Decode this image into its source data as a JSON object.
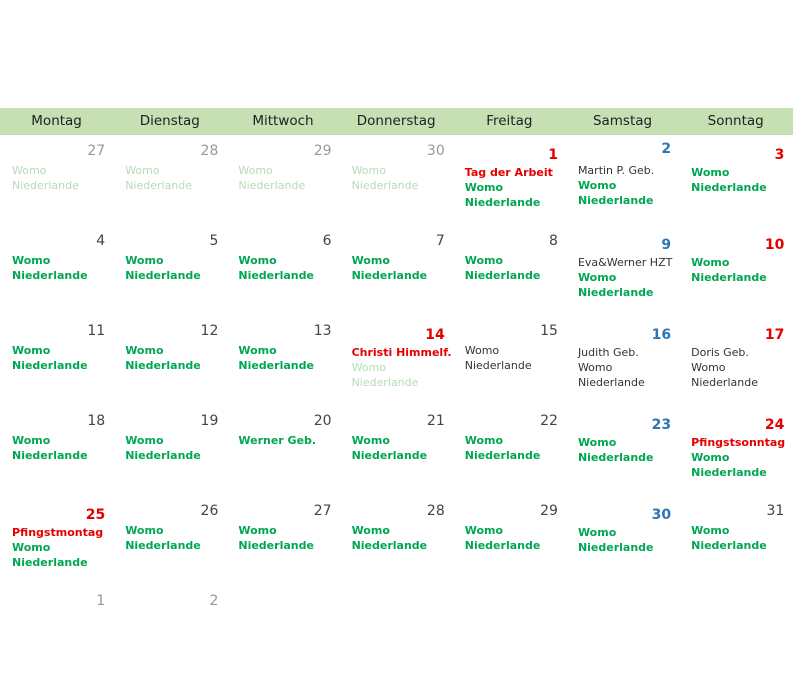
{
  "weekdays": [
    "Montag",
    "Dienstag",
    "Mittwoch",
    "Donnerstag",
    "Freitag",
    "Samstag",
    "Sonntag"
  ],
  "weeks": [
    [
      {
        "day": "27",
        "style": "out",
        "entries": [
          [
            "Womo",
            "faint"
          ],
          [
            "Niederlande",
            "faint"
          ]
        ]
      },
      {
        "day": "28",
        "style": "out",
        "entries": [
          [
            "Womo",
            "faint"
          ],
          [
            "Niederlande",
            "faint"
          ]
        ]
      },
      {
        "day": "29",
        "style": "out",
        "entries": [
          [
            "Womo",
            "faint"
          ],
          [
            "Niederlande",
            "faint"
          ]
        ]
      },
      {
        "day": "30",
        "style": "out",
        "entries": [
          [
            "Womo",
            "faint"
          ],
          [
            "Niederlande",
            "faint"
          ]
        ]
      },
      {
        "day": "1",
        "style": "red",
        "entries": [
          [
            "Tag der Arbeit",
            "red"
          ],
          [
            "Womo",
            "green"
          ],
          [
            "Niederlande",
            "green"
          ]
        ]
      },
      {
        "day": "2",
        "style": "blue-hi",
        "entries": [
          [
            "Martin P. Geb.",
            "dark"
          ],
          [
            "Womo",
            "green"
          ],
          [
            "Niederlande",
            "green"
          ]
        ]
      },
      {
        "day": "3",
        "style": "red",
        "entries": [
          [
            "Womo",
            "green"
          ],
          [
            "Niederlande",
            "green"
          ]
        ]
      }
    ],
    [
      {
        "day": "4",
        "style": "normal",
        "entries": [
          [
            "Womo",
            "green"
          ],
          [
            "Niederlande",
            "green"
          ]
        ]
      },
      {
        "day": "5",
        "style": "normal",
        "entries": [
          [
            "Womo",
            "green"
          ],
          [
            "Niederlande",
            "green"
          ]
        ]
      },
      {
        "day": "6",
        "style": "normal",
        "entries": [
          [
            "Womo",
            "green"
          ],
          [
            "Niederlande",
            "green"
          ]
        ]
      },
      {
        "day": "7",
        "style": "normal",
        "entries": [
          [
            "Womo",
            "green"
          ],
          [
            "Niederlande",
            "green"
          ]
        ]
      },
      {
        "day": "8",
        "style": "normal",
        "entries": [
          [
            "Womo",
            "green"
          ],
          [
            "Niederlande",
            "green"
          ]
        ]
      },
      {
        "day": "9",
        "style": "blue",
        "entries": [
          [
            "Eva&Werner HZT",
            "dark"
          ],
          [
            "Womo",
            "green"
          ],
          [
            "Niederlande",
            "green"
          ]
        ]
      },
      {
        "day": "10",
        "style": "red",
        "entries": [
          [
            "Womo",
            "green"
          ],
          [
            "Niederlande",
            "green"
          ]
        ]
      }
    ],
    [
      {
        "day": "11",
        "style": "normal",
        "entries": [
          [
            "Womo",
            "green"
          ],
          [
            "Niederlande",
            "green"
          ]
        ]
      },
      {
        "day": "12",
        "style": "normal",
        "entries": [
          [
            "Womo",
            "green"
          ],
          [
            "Niederlande",
            "green"
          ]
        ]
      },
      {
        "day": "13",
        "style": "normal",
        "entries": [
          [
            "Womo",
            "green"
          ],
          [
            "Niederlande",
            "green"
          ]
        ]
      },
      {
        "day": "14",
        "style": "red",
        "entries": [
          [
            "Christi Himmelf.",
            "red"
          ],
          [
            "Womo",
            "faint"
          ],
          [
            "Niederlande",
            "faint"
          ]
        ]
      },
      {
        "day": "15",
        "style": "normal",
        "entries": [
          [
            "Womo",
            "dark"
          ],
          [
            "Niederlande",
            "dark"
          ]
        ]
      },
      {
        "day": "16",
        "style": "blue",
        "entries": [
          [
            "Judith Geb.",
            "dark"
          ],
          [
            "Womo",
            "dark"
          ],
          [
            "Niederlande",
            "dark"
          ]
        ]
      },
      {
        "day": "17",
        "style": "red",
        "entries": [
          [
            "Doris Geb.",
            "dark"
          ],
          [
            "Womo",
            "dark"
          ],
          [
            "Niederlande",
            "dark"
          ]
        ]
      }
    ],
    [
      {
        "day": "18",
        "style": "normal",
        "entries": [
          [
            "Womo",
            "green"
          ],
          [
            "Niederlande",
            "green"
          ]
        ]
      },
      {
        "day": "19",
        "style": "normal",
        "entries": [
          [
            "Womo",
            "green"
          ],
          [
            "Niederlande",
            "green"
          ]
        ]
      },
      {
        "day": "20",
        "style": "normal",
        "entries": [
          [
            "Werner Geb.",
            "green"
          ]
        ]
      },
      {
        "day": "21",
        "style": "normal",
        "entries": [
          [
            "Womo",
            "green"
          ],
          [
            "Niederlande",
            "green"
          ]
        ]
      },
      {
        "day": "22",
        "style": "normal",
        "entries": [
          [
            "Womo",
            "green"
          ],
          [
            "Niederlande",
            "green"
          ]
        ]
      },
      {
        "day": "23",
        "style": "blue",
        "entries": [
          [
            "Womo",
            "green"
          ],
          [
            "Niederlande",
            "green"
          ]
        ]
      },
      {
        "day": "24",
        "style": "red",
        "entries": [
          [
            "Pfingstsonntag",
            "red"
          ],
          [
            "Womo",
            "green"
          ],
          [
            "Niederlande",
            "green"
          ]
        ]
      }
    ],
    [
      {
        "day": "25",
        "style": "red",
        "entries": [
          [
            "Pfingstmontag",
            "red"
          ],
          [
            "Womo",
            "green"
          ],
          [
            "Niederlande",
            "green"
          ]
        ]
      },
      {
        "day": "26",
        "style": "normal",
        "entries": [
          [
            "Womo",
            "green"
          ],
          [
            "Niederlande",
            "green"
          ]
        ]
      },
      {
        "day": "27",
        "style": "normal",
        "entries": [
          [
            "Womo",
            "green"
          ],
          [
            "Niederlande",
            "green"
          ]
        ]
      },
      {
        "day": "28",
        "style": "normal",
        "entries": [
          [
            "Womo",
            "green"
          ],
          [
            "Niederlande",
            "green"
          ]
        ]
      },
      {
        "day": "29",
        "style": "normal",
        "entries": [
          [
            "Womo",
            "green"
          ],
          [
            "Niederlande",
            "green"
          ]
        ]
      },
      {
        "day": "30",
        "style": "blue",
        "entries": [
          [
            "Womo",
            "green"
          ],
          [
            "Niederlande",
            "green"
          ]
        ]
      },
      {
        "day": "31",
        "style": "normal",
        "entries": [
          [
            "Womo",
            "green"
          ],
          [
            "Niederlande",
            "green"
          ]
        ]
      }
    ],
    [
      {
        "day": "1",
        "style": "out",
        "entries": []
      },
      {
        "day": "2",
        "style": "out",
        "entries": []
      }
    ]
  ],
  "colors": {
    "header_bg": "#c6e0b4",
    "green": "#00a651",
    "red": "#e50000",
    "blue": "#2e75b6"
  }
}
